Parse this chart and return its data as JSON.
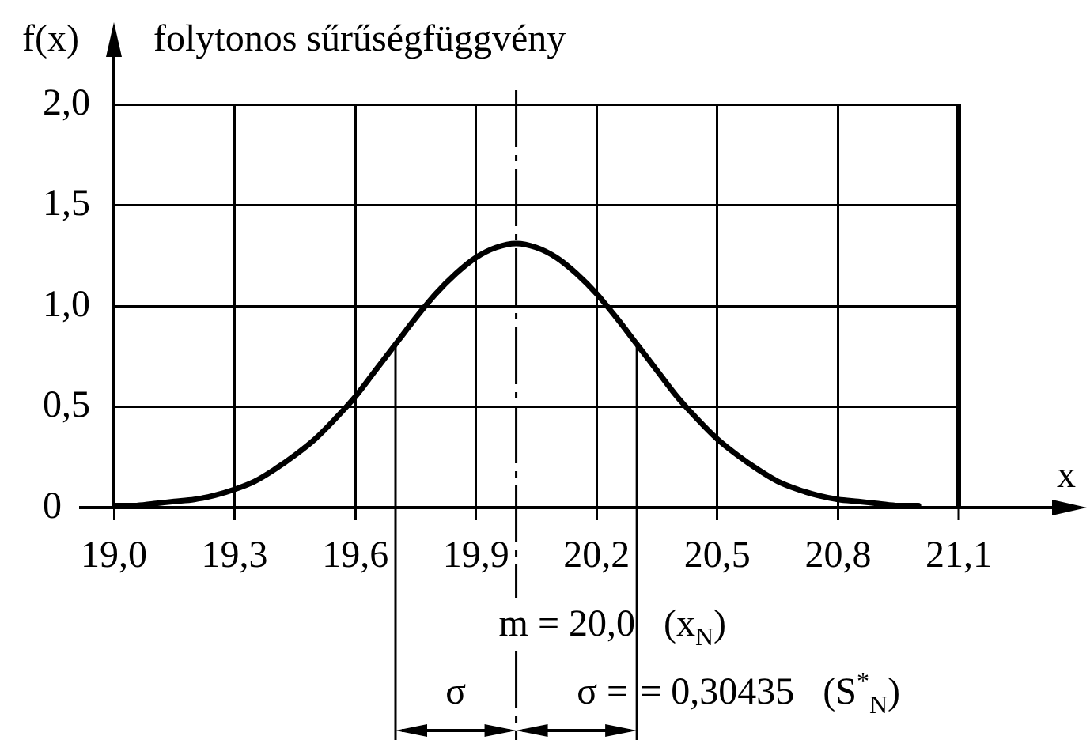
{
  "chart_data": {
    "type": "line",
    "title": "folytonos sűrűségfüggvény",
    "xlabel": "x",
    "ylabel": "f(x)",
    "x": [
      19.0,
      19.05,
      19.1,
      19.15,
      19.2,
      19.25,
      19.3,
      19.35,
      19.4,
      19.45,
      19.5,
      19.55,
      19.6,
      19.65,
      19.7,
      19.75,
      19.8,
      19.85,
      19.9,
      19.95,
      20.0,
      20.05,
      20.1,
      20.15,
      20.2,
      20.25,
      20.3,
      20.35,
      20.4,
      20.45,
      20.5,
      20.55,
      20.6,
      20.65,
      20.7,
      20.75,
      20.8,
      20.85,
      20.9,
      20.95,
      21.0
    ],
    "series": [
      {
        "color": "#000000",
        "values": [
          0.01,
          0.01,
          0.02,
          0.03,
          0.04,
          0.06,
          0.09,
          0.13,
          0.19,
          0.26,
          0.34,
          0.44,
          0.55,
          0.68,
          0.81,
          0.94,
          1.06,
          1.16,
          1.24,
          1.29,
          1.31,
          1.29,
          1.24,
          1.16,
          1.06,
          0.94,
          0.81,
          0.68,
          0.55,
          0.44,
          0.34,
          0.26,
          0.19,
          0.13,
          0.09,
          0.06,
          0.04,
          0.03,
          0.02,
          0.01,
          0.01
        ]
      }
    ],
    "xlim": [
      19.0,
      21.1
    ],
    "ylim": [
      0,
      2.0
    ],
    "xticks": [
      {
        "value": 19.0,
        "label": "19,0"
      },
      {
        "value": 19.3,
        "label": "19,3"
      },
      {
        "value": 19.6,
        "label": "19,6"
      },
      {
        "value": 19.9,
        "label": "19,9"
      },
      {
        "value": 20.2,
        "label": "20,2"
      },
      {
        "value": 20.5,
        "label": "20,5"
      },
      {
        "value": 20.8,
        "label": "20,8"
      },
      {
        "value": 21.1,
        "label": "21,1"
      }
    ],
    "yticks": [
      0,
      {
        "value": 0.5,
        "label": "0,5"
      },
      {
        "value": 1.0,
        "label": "1,0"
      },
      {
        "value": 1.5,
        "label": "1,5"
      },
      {
        "value": 2.0,
        "label": "2,0"
      }
    ],
    "grid": true,
    "marker": "none",
    "line_style": "solid",
    "ref_lines": [
      {
        "axis": "x",
        "value": 19.7
      },
      {
        "axis": "x",
        "value": 20.0,
        "label": "m = 20,0   (x$_{N}$)",
        "line_style": "dashed"
      },
      {
        "axis": "x",
        "value": 20.3
      }
    ],
    "annotations": [
      "σ",
      "σ =",
      "= 0,30435   (S$^{*}$$_{N}$)"
    ]
  }
}
